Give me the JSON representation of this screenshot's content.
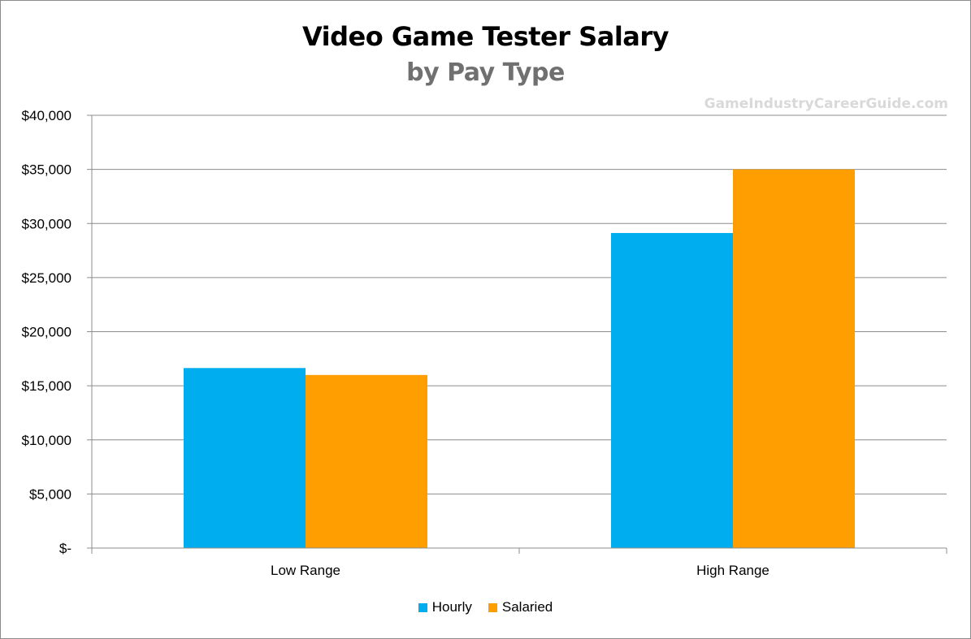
{
  "title": "Video Game Tester Salary",
  "subtitle": "by Pay Type",
  "watermark": "GameIndustryCareerGuide.com",
  "colors": {
    "hourly": "#00aeef",
    "salaried": "#ff9e00",
    "grid": "#8c8c8c"
  },
  "chart_data": {
    "type": "bar",
    "title": "Video Game Tester Salary",
    "subtitle": "by Pay Type",
    "categories": [
      "Low Range",
      "High Range"
    ],
    "series": [
      {
        "name": "Hourly",
        "values": [
          16640,
          29120
        ],
        "color": "#00aeef"
      },
      {
        "name": "Salaried",
        "values": [
          16000,
          35000
        ],
        "color": "#ff9e00"
      }
    ],
    "ylim": [
      0,
      40000
    ],
    "yticks": [
      0,
      5000,
      10000,
      15000,
      20000,
      25000,
      30000,
      35000,
      40000
    ],
    "ytick_labels": [
      "$-",
      "$5,000",
      "$10,000",
      "$15,000",
      "$20,000",
      "$25,000",
      "$30,000",
      "$35,000",
      "$40,000"
    ],
    "grid": true,
    "legend_position": "bottom"
  }
}
